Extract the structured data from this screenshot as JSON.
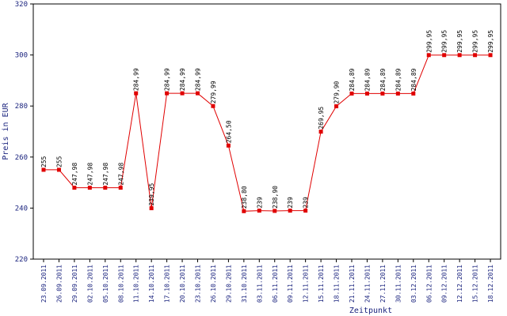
{
  "chart_data": {
    "type": "line",
    "xlabel": "Zeitpunkt",
    "ylabel": "Preis in EUR",
    "ylim": [
      220,
      320
    ],
    "yticks": [
      220,
      240,
      260,
      280,
      300,
      320
    ],
    "grid": false,
    "legend": "none",
    "colors": {
      "series": "#e00000",
      "axis_text": "#1a237e",
      "axes": "#000000"
    },
    "categories": [
      "23.09.2011",
      "26.09.2011",
      "29.09.2011",
      "02.10.2011",
      "05.10.2011",
      "08.10.2011",
      "11.10.2011",
      "14.10.2011",
      "17.10.2011",
      "20.10.2011",
      "23.10.2011",
      "26.10.2011",
      "29.10.2011",
      "31.10.2011",
      "03.11.2011",
      "06.11.2011",
      "09.11.2011",
      "12.11.2011",
      "15.11.2011",
      "18.11.2011",
      "21.11.2011",
      "24.11.2011",
      "27.11.2011",
      "30.11.2011",
      "03.12.2011",
      "06.12.2011",
      "09.12.2011",
      "12.12.2011",
      "15.12.2011",
      "18.12.2011"
    ],
    "series": [
      {
        "values": [
          255,
          255,
          247.98,
          247.98,
          247.98,
          247.98,
          284.99,
          239.95,
          284.99,
          284.99,
          284.99,
          279.99,
          264.5,
          238.8,
          239,
          238.9,
          239,
          239,
          269.95,
          279.9,
          284.89,
          284.89,
          284.89,
          284.89,
          284.89,
          299.95,
          299.95,
          299.95,
          299.95,
          299.95
        ],
        "labels": [
          "255",
          "255",
          "247,98",
          "247,98",
          "247,98",
          "247,98",
          "284,99",
          "239,95",
          "284,99",
          "284,99",
          "284,99",
          "279,99",
          "264,50",
          "238,80",
          "239",
          "238,90",
          "239",
          "239",
          "269,95",
          "279,90",
          "284,89",
          "284,89",
          "284,89",
          "284,89",
          "284,89",
          "299,95",
          "299,95",
          "299,95",
          "299,95",
          "299,95"
        ]
      }
    ]
  }
}
